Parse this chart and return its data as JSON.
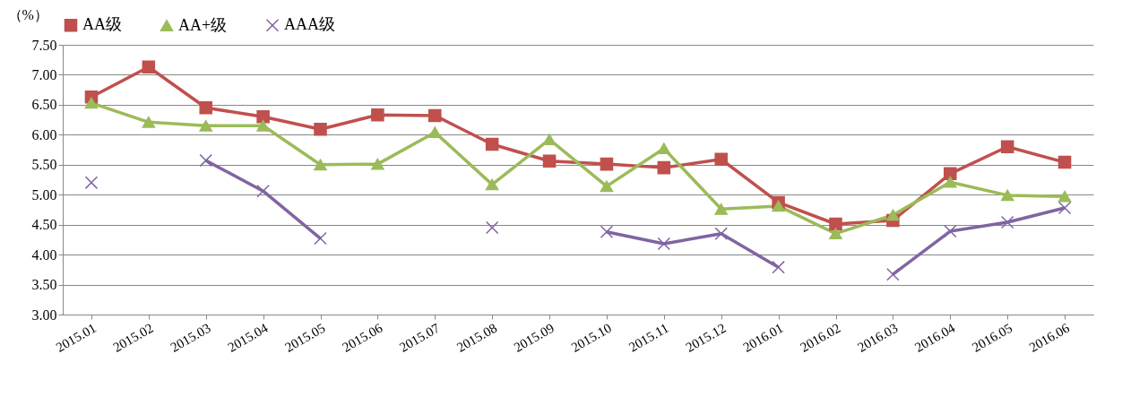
{
  "chart_data": {
    "type": "line",
    "ylabel": "（%）",
    "categories": [
      "2015.01",
      "2015.02",
      "2015.03",
      "2015.04",
      "2015.05",
      "2015.06",
      "2015.07",
      "2015.08",
      "2015.09",
      "2015.10",
      "2015.11",
      "2015.12",
      "2016.01",
      "2016.02",
      "2016.03",
      "2016.04",
      "2016.05",
      "2016.06"
    ],
    "series": [
      {
        "name": "AA级",
        "color": "#c0504d",
        "marker": "square",
        "values": [
          6.63,
          7.13,
          6.45,
          6.3,
          6.09,
          6.33,
          6.32,
          5.84,
          5.56,
          5.51,
          5.45,
          5.59,
          4.87,
          4.51,
          4.57,
          5.35,
          5.8,
          5.54
        ]
      },
      {
        "name": "AA+级",
        "color": "#9bbb59",
        "marker": "triangle",
        "values": [
          6.53,
          6.21,
          6.15,
          6.15,
          5.5,
          5.51,
          6.04,
          5.17,
          5.92,
          5.14,
          5.77,
          4.76,
          4.81,
          4.35,
          4.66,
          5.21,
          4.99,
          4.97
        ]
      },
      {
        "name": "AAA级",
        "color": "#8064a2",
        "marker": "cross",
        "values": [
          5.2,
          null,
          5.57,
          5.06,
          4.27,
          null,
          null,
          4.45,
          null,
          4.38,
          4.18,
          4.35,
          3.79,
          null,
          3.67,
          4.39,
          4.54,
          4.78
        ]
      }
    ],
    "ylim": [
      3,
      7.5
    ],
    "yticks": [
      {
        "value": 3,
        "label": "3.00"
      },
      {
        "value": 3.5,
        "label": "3.50"
      },
      {
        "value": 4,
        "label": "4.00"
      },
      {
        "value": 4.5,
        "label": "4.50"
      },
      {
        "value": 5,
        "label": "5.00"
      },
      {
        "value": 5.5,
        "label": "5.50"
      },
      {
        "value": 6,
        "label": "6.00"
      },
      {
        "value": 6.5,
        "label": "6.50"
      },
      {
        "value": 7,
        "label": "7.00"
      },
      {
        "value": 7.5,
        "label": "7.50"
      }
    ],
    "grid": "y",
    "legend": "top",
    "line_style": "solid"
  }
}
